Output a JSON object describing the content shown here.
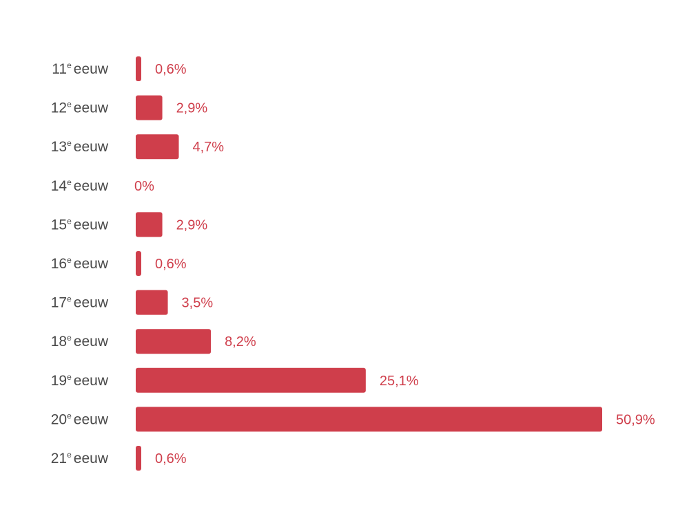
{
  "chart_data": {
    "type": "bar",
    "orientation": "horizontal",
    "categories": [
      {
        "number": "11",
        "suffix": "e",
        "word": "eeuw"
      },
      {
        "number": "12",
        "suffix": "e",
        "word": "eeuw"
      },
      {
        "number": "13",
        "suffix": "e",
        "word": "eeuw"
      },
      {
        "number": "14",
        "suffix": "e",
        "word": "eeuw"
      },
      {
        "number": "15",
        "suffix": "e",
        "word": "eeuw"
      },
      {
        "number": "16",
        "suffix": "e",
        "word": "eeuw"
      },
      {
        "number": "17",
        "suffix": "e",
        "word": "eeuw"
      },
      {
        "number": "18",
        "suffix": "e",
        "word": "eeuw"
      },
      {
        "number": "19",
        "suffix": "e",
        "word": "eeuw"
      },
      {
        "number": "20",
        "suffix": "e",
        "word": "eeuw"
      },
      {
        "number": "21",
        "suffix": "e",
        "word": "eeuw"
      }
    ],
    "values": [
      0.6,
      2.9,
      4.7,
      0,
      2.9,
      0.6,
      3.5,
      8.2,
      25.1,
      50.9,
      0.6
    ],
    "value_labels": [
      "0,6%",
      "2,9%",
      "4,7%",
      "0%",
      "2,9%",
      "0,6%",
      "3,5%",
      "8,2%",
      "25,1%",
      "50,9%",
      "0,6%"
    ],
    "xlim": [
      0,
      50.9
    ],
    "grid": false,
    "colors": {
      "bar": "#cf3e4b",
      "value_label": "#cf3e4b",
      "category_label": "#4a4a4a"
    }
  }
}
